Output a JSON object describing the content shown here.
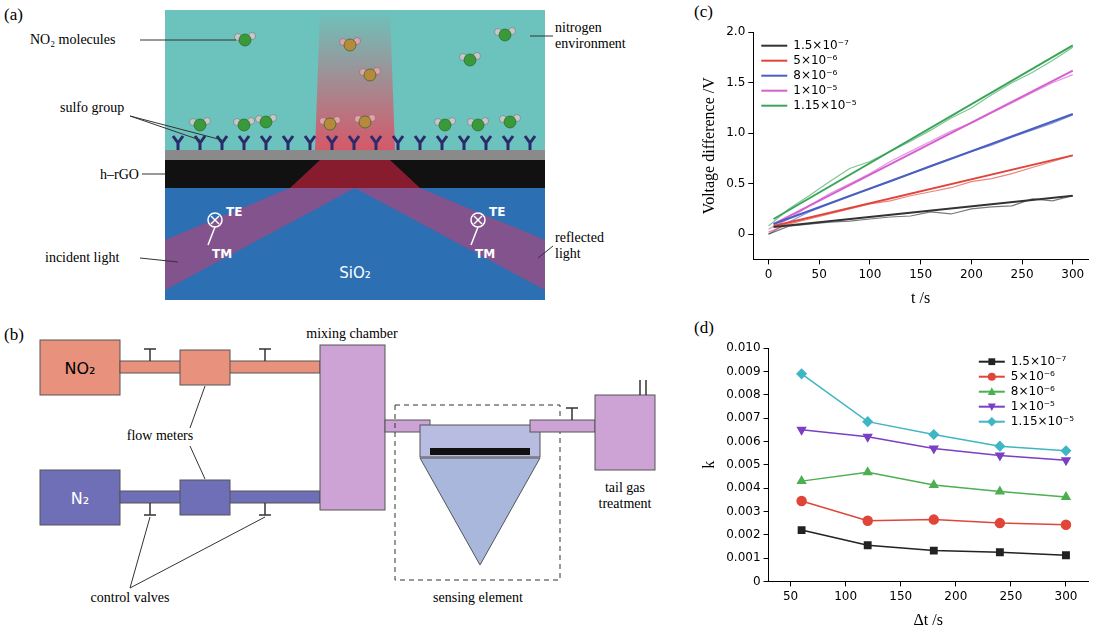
{
  "diagram_a": {
    "letter": "(a)",
    "texts": {
      "molecules": "NO₂ molecules",
      "environment": "nitrogen environment",
      "sulfo": "sulfo group",
      "film": "h–rGO",
      "substrate": "SiO₂",
      "te": "TE",
      "tm": "TM",
      "incident": "incident light",
      "reflected": "reflected light"
    }
  },
  "diagram_b": {
    "letter": "(b)",
    "texts": {
      "gas1": "NO₂",
      "gas2": "N₂",
      "flow": "flow meters",
      "valves": "control valves",
      "mixer": "mixing chamber",
      "sensor": "sensing element",
      "tail": "tail gas treatment"
    }
  },
  "chart_data": [
    {
      "letter": "(c)",
      "type": "line",
      "x_label": "t /s",
      "y_label": "Voltage difference /V",
      "xlim": [
        -15,
        315
      ],
      "xticks": [
        0,
        50,
        100,
        150,
        200,
        250,
        300
      ],
      "ylim": [
        -0.25,
        2.0
      ],
      "yticks": [
        0,
        0.5,
        {
          "value": 1,
          "label": "1.0"
        },
        1.5,
        {
          "value": 2,
          "label": "2.0"
        }
      ],
      "grid": false,
      "legend": "upper left",
      "x": [
        0,
        20,
        40,
        60,
        80,
        100,
        120,
        140,
        160,
        180,
        200,
        220,
        240,
        260,
        280,
        300
      ],
      "series": [
        {
          "name": "1.5×10⁻⁷",
          "color": "#333333",
          "values": [
            0.0,
            0.08,
            0.1,
            0.12,
            0.13,
            0.15,
            0.17,
            0.18,
            0.22,
            0.2,
            0.25,
            0.27,
            0.28,
            0.35,
            0.33,
            0.38
          ],
          "fit": {
            "x": [
              5,
              300
            ],
            "values": [
              0.07,
              0.38
            ]
          }
        },
        {
          "name": "5×10⁻⁶",
          "color": "#e0453a",
          "values": [
            0.02,
            0.1,
            0.15,
            0.2,
            0.25,
            0.3,
            0.33,
            0.38,
            0.42,
            0.46,
            0.52,
            0.55,
            0.6,
            0.66,
            0.72,
            0.78
          ],
          "fit": {
            "x": [
              5,
              300
            ],
            "values": [
              0.08,
              0.78
            ]
          }
        },
        {
          "name": "8×10⁻⁶",
          "color": "#4a5fc1",
          "values": [
            0.0,
            0.12,
            0.22,
            0.3,
            0.38,
            0.45,
            0.52,
            0.6,
            0.68,
            0.75,
            0.82,
            0.88,
            0.96,
            1.03,
            1.1,
            1.18
          ],
          "fit": {
            "x": [
              5,
              300
            ],
            "values": [
              0.1,
              1.19
            ]
          }
        },
        {
          "name": "1×10⁻⁵",
          "color": "#d560d0",
          "values": [
            0.05,
            0.15,
            0.28,
            0.4,
            0.5,
            0.6,
            0.72,
            0.82,
            0.92,
            1.02,
            1.1,
            1.2,
            1.3,
            1.4,
            1.5,
            1.58
          ],
          "fit": {
            "x": [
              5,
              300
            ],
            "values": [
              0.1,
              1.62
            ]
          }
        },
        {
          "name": "1.15×10⁻⁵",
          "color": "#3aa55a",
          "values": [
            0.08,
            0.25,
            0.38,
            0.52,
            0.65,
            0.72,
            0.82,
            0.92,
            1.03,
            1.15,
            1.25,
            1.38,
            1.5,
            1.6,
            1.72,
            1.85
          ],
          "fit": {
            "x": [
              5,
              300
            ],
            "values": [
              0.15,
              1.87
            ]
          }
        }
      ]
    },
    {
      "letter": "(d)",
      "type": "line",
      "x_label": "Δt /s",
      "y_label": "k",
      "xlim": [
        30,
        320
      ],
      "xticks": [
        50,
        100,
        150,
        200,
        250,
        300
      ],
      "ylim": [
        0,
        0.01
      ],
      "yticks": [
        0,
        0.001,
        0.002,
        0.003,
        0.004,
        0.005,
        0.006,
        0.007,
        0.008,
        0.009,
        {
          "value": 0.01,
          "label": "0.010"
        }
      ],
      "grid": false,
      "legend": "upper right",
      "x": [
        60,
        120,
        180,
        240,
        300
      ],
      "series": [
        {
          "name": "1.5×10⁻⁷",
          "color": "#222222",
          "marker": "square",
          "values": [
            0.0022,
            0.00155,
            0.00132,
            0.00125,
            0.00112
          ]
        },
        {
          "name": "5×10⁻⁶",
          "color": "#e0453a",
          "marker": "circle",
          "values": [
            0.00345,
            0.0026,
            0.00265,
            0.0025,
            0.00243
          ]
        },
        {
          "name": "8×10⁻⁶",
          "color": "#4caf50",
          "marker": "triangle",
          "values": [
            0.0043,
            0.00468,
            0.00413,
            0.00385,
            0.00362
          ]
        },
        {
          "name": "1×10⁻⁵",
          "color": "#7b3fc4",
          "marker": "down_triangle",
          "values": [
            0.0065,
            0.0062,
            0.0057,
            0.0054,
            0.0052
          ]
        },
        {
          "name": "1.15×10⁻⁵",
          "color": "#3fb6c4",
          "marker": "diamond",
          "values": [
            0.0089,
            0.00685,
            0.0063,
            0.0058,
            0.0056
          ]
        }
      ]
    }
  ]
}
